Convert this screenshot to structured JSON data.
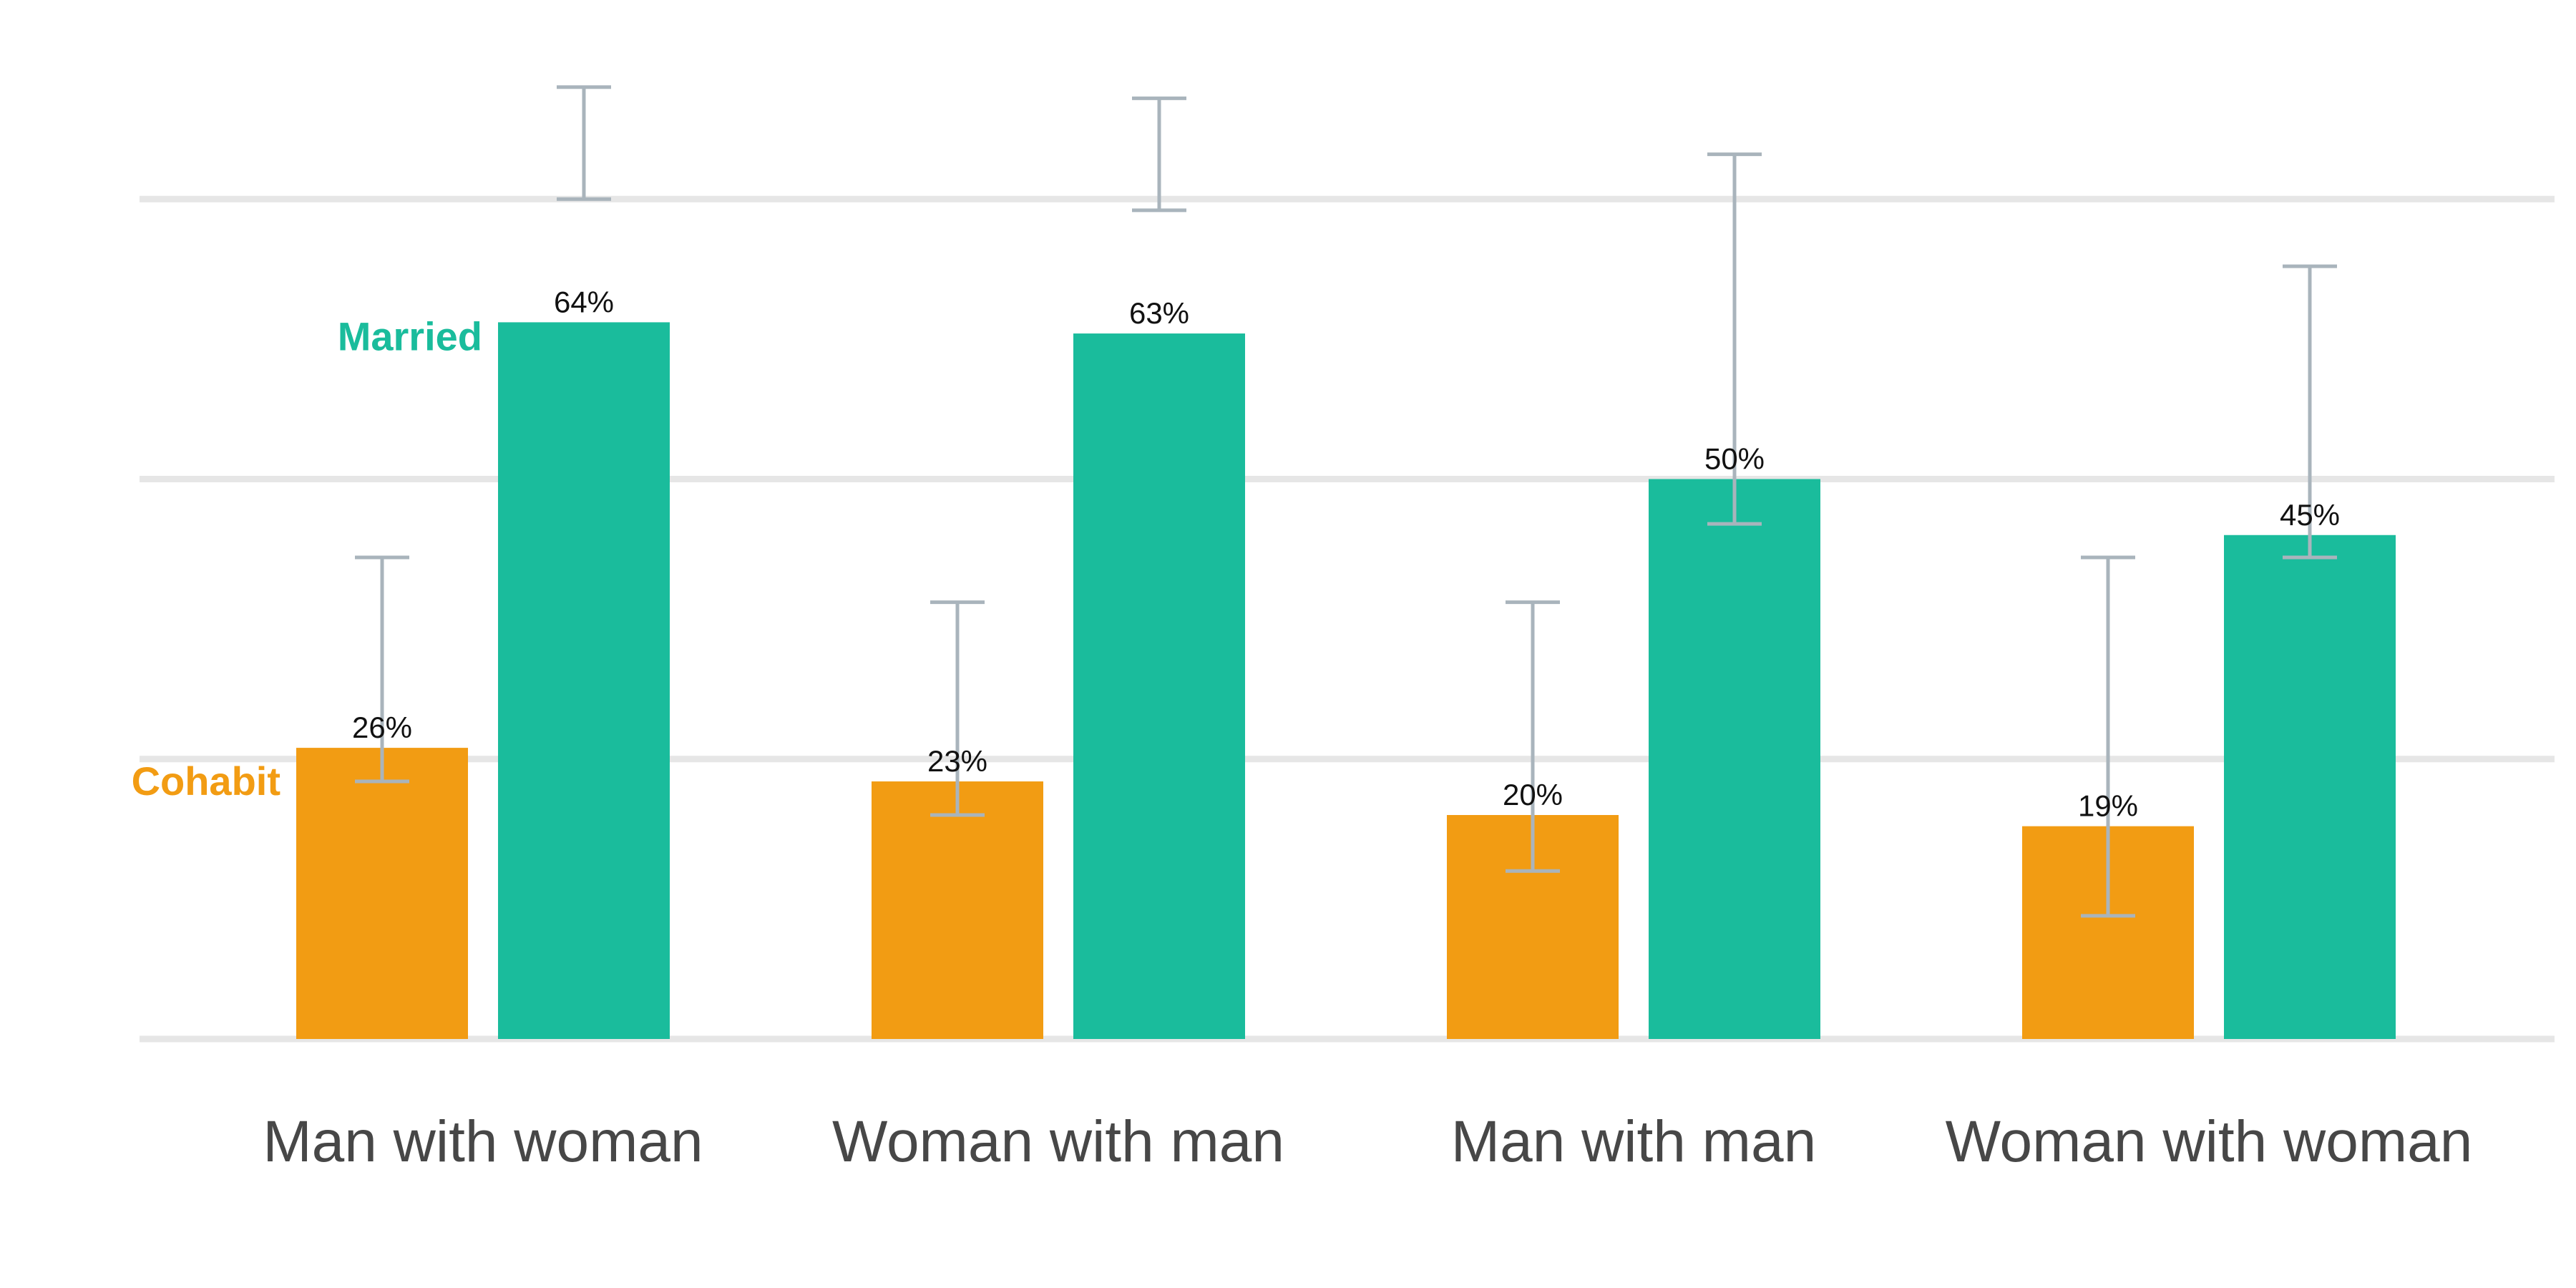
{
  "chart_data": {
    "type": "bar",
    "title": "",
    "xlabel": "",
    "ylabel": "",
    "ylim": [
      0,
      75
    ],
    "yticks": [
      0,
      25,
      50,
      75
    ],
    "grid": true,
    "categories": [
      "Man with woman",
      "Woman with man",
      "Man with man",
      "Woman with woman"
    ],
    "series": [
      {
        "name": "Cohabit",
        "color": "#f29c13",
        "values": [
          26,
          23,
          20,
          19
        ],
        "labels": [
          "26%",
          "23%",
          "20%",
          "19%"
        ],
        "error_low": [
          23,
          20,
          15,
          11
        ],
        "error_high": [
          43,
          39,
          39,
          43
        ]
      },
      {
        "name": "Married",
        "color": "#1abc9c",
        "values": [
          64,
          63,
          50,
          45
        ],
        "labels": [
          "64%",
          "63%",
          "50%",
          "45%"
        ],
        "error_low": [
          75,
          74,
          46,
          43
        ],
        "error_high": [
          85,
          84,
          79,
          69
        ]
      }
    ],
    "errorbar_color": "#a9b4bc",
    "gridline_color": "#e6e6e6",
    "legend": "inline-left-of-first-group"
  }
}
